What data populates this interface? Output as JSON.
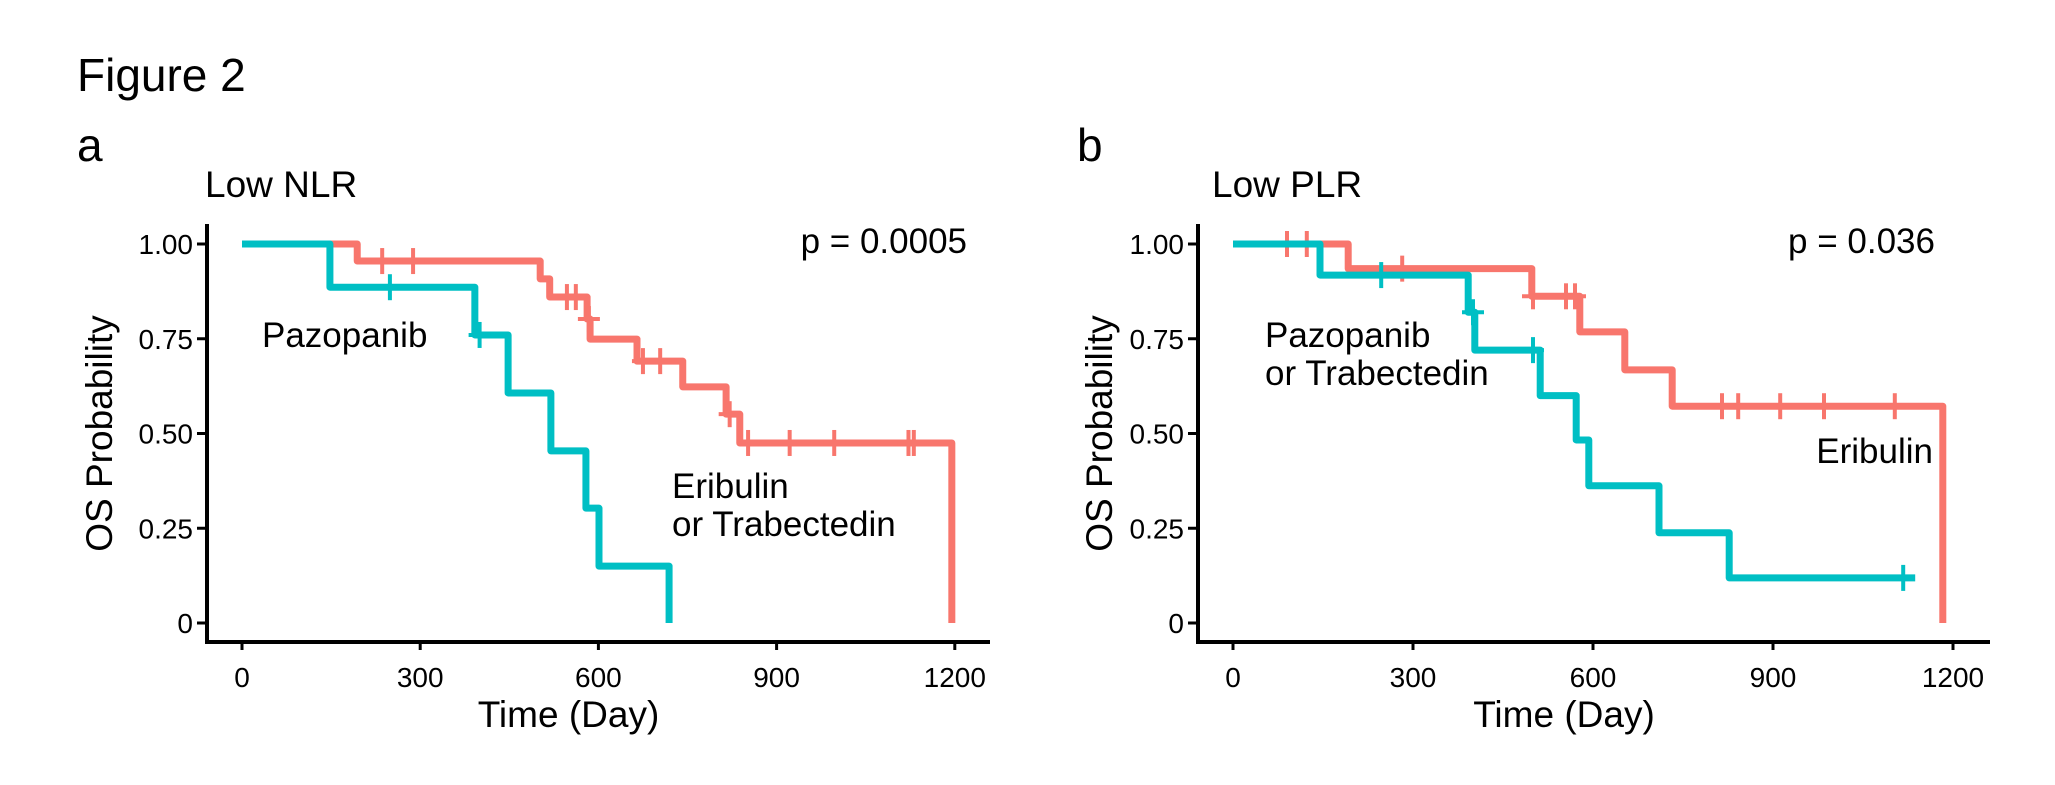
{
  "figure_title": "Figure 2",
  "colors": {
    "red": "#F8766D",
    "teal": "#00BFC4",
    "axis": "#000000"
  },
  "chart_data": [
    {
      "type": "line",
      "subtype": "kaplan-meier",
      "panel_label": "a",
      "title": "Low NLR",
      "xlabel": "Time (Day)",
      "ylabel": "OS Probability",
      "xlim": [
        0,
        1200
      ],
      "ylim": [
        0,
        1
      ],
      "xticks": [
        0,
        300,
        600,
        900,
        1200
      ],
      "xtick_labels": [
        "0",
        "300",
        "600",
        "900",
        "1200"
      ],
      "yticks": [
        0,
        0.25,
        0.5,
        0.75,
        1.0
      ],
      "ytick_labels": [
        "0",
        "0.25",
        "0.50",
        "0.75",
        "1.00"
      ],
      "grid": false,
      "annotation": "p = 0.0005",
      "series": [
        {
          "name": "Eribulin or Trabectedin",
          "label_lines": [
            "Eribulin",
            "or Trabectedin"
          ],
          "color": "#F8766D",
          "steps": [
            [
              0,
              1.0
            ],
            [
              194,
              0.955
            ],
            [
              502,
              0.908
            ],
            [
              518,
              0.86
            ],
            [
              581,
              0.802
            ],
            [
              586,
              0.749
            ],
            [
              665,
              0.691
            ],
            [
              742,
              0.623
            ],
            [
              815,
              0.551
            ],
            [
              838,
              0.475
            ],
            [
              1195,
              0.0
            ]
          ],
          "end": 1195,
          "censored": [
            [
              236,
              0.955
            ],
            [
              288,
              0.955
            ],
            [
              547,
              0.86
            ],
            [
              562,
              0.86
            ],
            [
              584,
              0.802
            ],
            [
              675,
              0.691
            ],
            [
              704,
              0.691
            ],
            [
              821,
              0.551
            ],
            [
              852,
              0.475
            ],
            [
              922,
              0.475
            ],
            [
              997,
              0.475
            ],
            [
              1122,
              0.475
            ],
            [
              1131,
              0.475
            ]
          ]
        },
        {
          "name": "Pazopanib",
          "label_lines": [
            "Pazopanib"
          ],
          "color": "#00BFC4",
          "steps": [
            [
              0,
              1.0
            ],
            [
              148,
              0.886
            ],
            [
              392,
              0.76
            ],
            [
              448,
              0.607
            ],
            [
              520,
              0.454
            ],
            [
              579,
              0.303
            ],
            [
              601,
              0.15
            ],
            [
              719,
              0.0
            ]
          ],
          "end": 719,
          "censored": [
            [
              249,
              0.886
            ],
            [
              400,
              0.76
            ]
          ]
        }
      ]
    },
    {
      "type": "line",
      "subtype": "kaplan-meier",
      "panel_label": "b",
      "title": "Low PLR",
      "xlabel": "Time (Day)",
      "ylabel": "OS Probability",
      "xlim": [
        0,
        1200
      ],
      "ylim": [
        0,
        1
      ],
      "xticks": [
        0,
        300,
        600,
        900,
        1200
      ],
      "xtick_labels": [
        "0",
        "300",
        "600",
        "900",
        "1200"
      ],
      "yticks": [
        0,
        0.25,
        0.5,
        0.75,
        1.0
      ],
      "ytick_labels": [
        "0",
        "0.25",
        "0.50",
        "0.75",
        "1.00"
      ],
      "grid": false,
      "annotation": "p = 0.036",
      "series": [
        {
          "name": "Eribulin",
          "label_lines": [
            "Eribulin"
          ],
          "color": "#F8766D",
          "steps": [
            [
              0,
              1.0
            ],
            [
              192,
              0.935
            ],
            [
              498,
              0.862
            ],
            [
              578,
              0.768
            ],
            [
              653,
              0.668
            ],
            [
              732,
              0.572
            ],
            [
              1183,
              0.0
            ]
          ],
          "end": 1183,
          "censored": [
            [
              90,
              1.0
            ],
            [
              123,
              1.0
            ],
            [
              282,
              0.935
            ],
            [
              500,
              0.862
            ],
            [
              555,
              0.862
            ],
            [
              570,
              0.862
            ],
            [
              815,
              0.572
            ],
            [
              842,
              0.572
            ],
            [
              912,
              0.572
            ],
            [
              985,
              0.572
            ],
            [
              1103,
              0.572
            ]
          ]
        },
        {
          "name": "Pazopanib or Trabectedin",
          "label_lines": [
            "Pazopanib",
            "or Trabectedin"
          ],
          "color": "#00BFC4",
          "steps": [
            [
              0,
              1.0
            ],
            [
              145,
              0.918
            ],
            [
              392,
              0.82
            ],
            [
              403,
              0.72
            ],
            [
              512,
              0.6
            ],
            [
              572,
              0.483
            ],
            [
              593,
              0.362
            ],
            [
              710,
              0.238
            ],
            [
              827,
              0.119
            ]
          ],
          "end": 1137,
          "censored": [
            [
              247,
              0.918
            ],
            [
              400,
              0.82
            ],
            [
              500,
              0.72
            ],
            [
              1117,
              0.119
            ]
          ]
        }
      ]
    }
  ]
}
